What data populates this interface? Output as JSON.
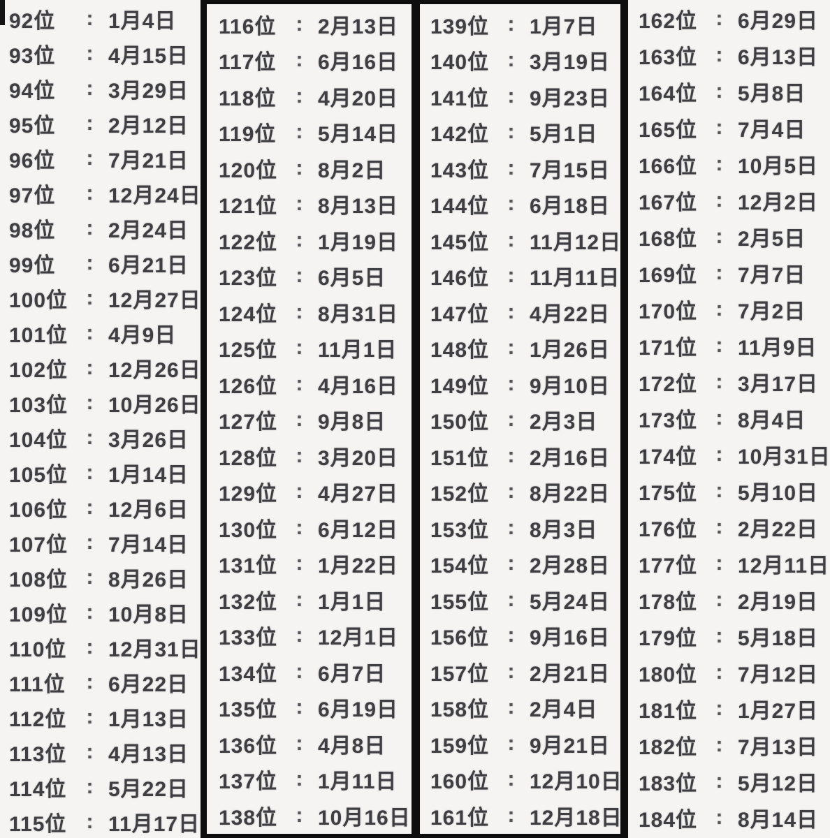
{
  "separator": ":",
  "colors": {
    "background": "#f5f4f2",
    "text": "#3f3f43",
    "frame": "#0e0e0e"
  },
  "columns": [
    {
      "entries": [
        {
          "rank": "92位",
          "date": "1月4日"
        },
        {
          "rank": "93位",
          "date": "4月15日"
        },
        {
          "rank": "94位",
          "date": "3月29日"
        },
        {
          "rank": "95位",
          "date": "2月12日"
        },
        {
          "rank": "96位",
          "date": "7月21日"
        },
        {
          "rank": "97位",
          "date": "12月24日"
        },
        {
          "rank": "98位",
          "date": "2月24日"
        },
        {
          "rank": "99位",
          "date": "6月21日"
        },
        {
          "rank": "100位",
          "date": "12月27日"
        },
        {
          "rank": "101位",
          "date": "4月9日"
        },
        {
          "rank": "102位",
          "date": "12月26日"
        },
        {
          "rank": "103位",
          "date": "10月26日"
        },
        {
          "rank": "104位",
          "date": "3月26日"
        },
        {
          "rank": "105位",
          "date": "1月14日"
        },
        {
          "rank": "106位",
          "date": "12月6日"
        },
        {
          "rank": "107位",
          "date": "7月14日"
        },
        {
          "rank": "108位",
          "date": "8月26日"
        },
        {
          "rank": "109位",
          "date": "10月8日"
        },
        {
          "rank": "110位",
          "date": "12月31日"
        },
        {
          "rank": "111位",
          "date": "6月22日"
        },
        {
          "rank": "112位",
          "date": "1月13日"
        },
        {
          "rank": "113位",
          "date": "4月13日"
        },
        {
          "rank": "114位",
          "date": "5月22日"
        },
        {
          "rank": "115位",
          "date": "11月17日"
        }
      ]
    },
    {
      "entries": [
        {
          "rank": "116位",
          "date": "2月13日"
        },
        {
          "rank": "117位",
          "date": "6月16日"
        },
        {
          "rank": "118位",
          "date": "4月20日"
        },
        {
          "rank": "119位",
          "date": "5月14日"
        },
        {
          "rank": "120位",
          "date": "8月2日"
        },
        {
          "rank": "121位",
          "date": "8月13日"
        },
        {
          "rank": "122位",
          "date": "1月19日"
        },
        {
          "rank": "123位",
          "date": "6月5日"
        },
        {
          "rank": "124位",
          "date": "8月31日"
        },
        {
          "rank": "125位",
          "date": "11月1日"
        },
        {
          "rank": "126位",
          "date": "4月16日"
        },
        {
          "rank": "127位",
          "date": "9月8日"
        },
        {
          "rank": "128位",
          "date": "3月20日"
        },
        {
          "rank": "129位",
          "date": "4月27日"
        },
        {
          "rank": "130位",
          "date": "6月12日"
        },
        {
          "rank": "131位",
          "date": "1月22日"
        },
        {
          "rank": "132位",
          "date": "1月1日"
        },
        {
          "rank": "133位",
          "date": "12月1日"
        },
        {
          "rank": "134位",
          "date": "6月7日"
        },
        {
          "rank": "135位",
          "date": "6月19日"
        },
        {
          "rank": "136位",
          "date": "4月8日"
        },
        {
          "rank": "137位",
          "date": "1月11日"
        },
        {
          "rank": "138位",
          "date": "10月16日"
        }
      ]
    },
    {
      "entries": [
        {
          "rank": "139位",
          "date": "1月7日"
        },
        {
          "rank": "140位",
          "date": "3月19日"
        },
        {
          "rank": "141位",
          "date": "9月23日"
        },
        {
          "rank": "142位",
          "date": "5月1日"
        },
        {
          "rank": "143位",
          "date": "7月15日"
        },
        {
          "rank": "144位",
          "date": "6月18日"
        },
        {
          "rank": "145位",
          "date": "11月12日"
        },
        {
          "rank": "146位",
          "date": "11月11日"
        },
        {
          "rank": "147位",
          "date": "4月22日"
        },
        {
          "rank": "148位",
          "date": "1月26日"
        },
        {
          "rank": "149位",
          "date": "9月10日"
        },
        {
          "rank": "150位",
          "date": "2月3日"
        },
        {
          "rank": "151位",
          "date": "2月16日"
        },
        {
          "rank": "152位",
          "date": "8月22日"
        },
        {
          "rank": "153位",
          "date": "8月3日"
        },
        {
          "rank": "154位",
          "date": "2月28日"
        },
        {
          "rank": "155位",
          "date": "5月24日"
        },
        {
          "rank": "156位",
          "date": "9月16日"
        },
        {
          "rank": "157位",
          "date": "2月21日"
        },
        {
          "rank": "158位",
          "date": "2月4日"
        },
        {
          "rank": "159位",
          "date": "9月21日"
        },
        {
          "rank": "160位",
          "date": "12月10日"
        },
        {
          "rank": "161位",
          "date": "12月18日"
        }
      ]
    },
    {
      "entries": [
        {
          "rank": "162位",
          "date": "6月29日"
        },
        {
          "rank": "163位",
          "date": "6月13日"
        },
        {
          "rank": "164位",
          "date": "5月8日"
        },
        {
          "rank": "165位",
          "date": "7月4日"
        },
        {
          "rank": "166位",
          "date": "10月5日"
        },
        {
          "rank": "167位",
          "date": "12月2日"
        },
        {
          "rank": "168位",
          "date": "2月5日"
        },
        {
          "rank": "169位",
          "date": "7月7日"
        },
        {
          "rank": "170位",
          "date": "7月2日"
        },
        {
          "rank": "171位",
          "date": "11月9日"
        },
        {
          "rank": "172位",
          "date": "3月17日"
        },
        {
          "rank": "173位",
          "date": "8月4日"
        },
        {
          "rank": "174位",
          "date": "10月31日"
        },
        {
          "rank": "175位",
          "date": "5月10日"
        },
        {
          "rank": "176位",
          "date": "2月22日"
        },
        {
          "rank": "177位",
          "date": "12月11日"
        },
        {
          "rank": "178位",
          "date": "2月19日"
        },
        {
          "rank": "179位",
          "date": "5月18日"
        },
        {
          "rank": "180位",
          "date": "7月12日"
        },
        {
          "rank": "181位",
          "date": "1月27日"
        },
        {
          "rank": "182位",
          "date": "7月13日"
        },
        {
          "rank": "183位",
          "date": "5月12日"
        },
        {
          "rank": "184位",
          "date": "8月14日"
        }
      ]
    }
  ]
}
